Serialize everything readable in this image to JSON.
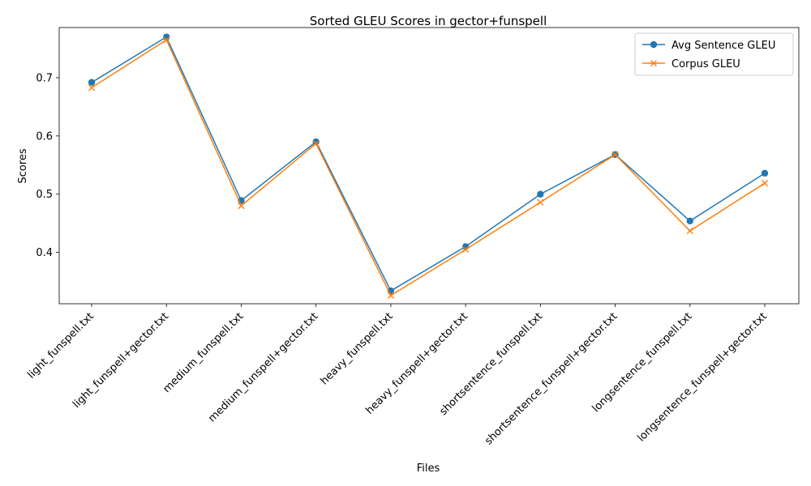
{
  "chart_data": {
    "type": "line",
    "title": "Sorted GLEU Scores in gector+funspell",
    "xlabel": "Files",
    "ylabel": "Scores",
    "categories": [
      "light_funspell.txt",
      "light_funspell+gector.txt",
      "medium_funspell.txt",
      "medium_funspell+gector.txt",
      "heavy_funspell.txt",
      "heavy_funspell+gector.txt",
      "shortsentence_funspell.txt",
      "shortsentence_funspell+gector.txt",
      "longsentence_funspell.txt",
      "longsentence_funspell+gector.txt"
    ],
    "series": [
      {
        "name": "Avg Sentence GLEU",
        "color": "#1f77b4",
        "marker": "circle",
        "values": [
          0.692,
          0.77,
          0.489,
          0.59,
          0.334,
          0.41,
          0.5,
          0.568,
          0.454,
          0.536
        ]
      },
      {
        "name": "Corpus GLEU",
        "color": "#ff7f0e",
        "marker": "x",
        "values": [
          0.683,
          0.765,
          0.48,
          0.587,
          0.326,
          0.405,
          0.486,
          0.568,
          0.437,
          0.519
        ]
      }
    ],
    "yticks": [
      "0.4",
      "0.5",
      "0.6",
      "0.7"
    ],
    "ylim": [
      0.3118,
      0.7862
    ],
    "grid": false,
    "legend": "top-right"
  }
}
